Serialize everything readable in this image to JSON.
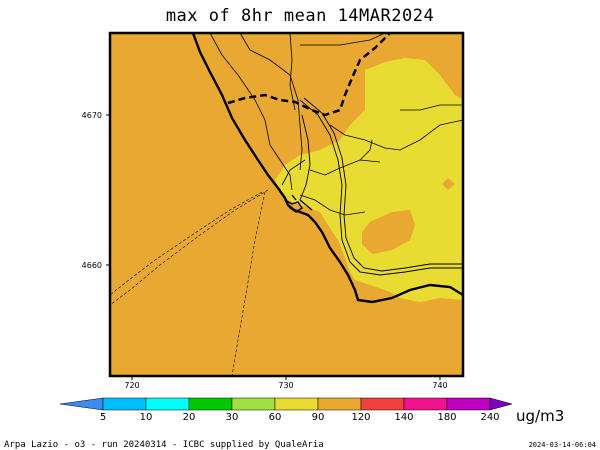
{
  "title": "max of 8hr mean 14MAR2024",
  "axes": {
    "x_ticks": [
      "720",
      "730",
      "740"
    ],
    "y_ticks": [
      "4670",
      "4660"
    ]
  },
  "colorbar": {
    "unit": "ug/m3",
    "levels": [
      "5",
      "10",
      "20",
      "30",
      "60",
      "90",
      "120",
      "140",
      "180",
      "240"
    ],
    "colors": [
      "#3a8cf0",
      "#00bfff",
      "#00ffff",
      "#00c800",
      "#a0e040",
      "#e8dc32",
      "#e8a832",
      "#f04040",
      "#f0128c",
      "#c000c0",
      "#8000c0"
    ]
  },
  "map": {
    "background_color": "#e8a832",
    "zone_colors": {
      "60-90": "#e8dc32",
      "90-120": "#e8a832"
    }
  },
  "footer": {
    "left": "Arpa Lazio - o3 - run 20240314 - ICBC supplied by QualeAria",
    "right": "2024-03-14-06:04"
  }
}
